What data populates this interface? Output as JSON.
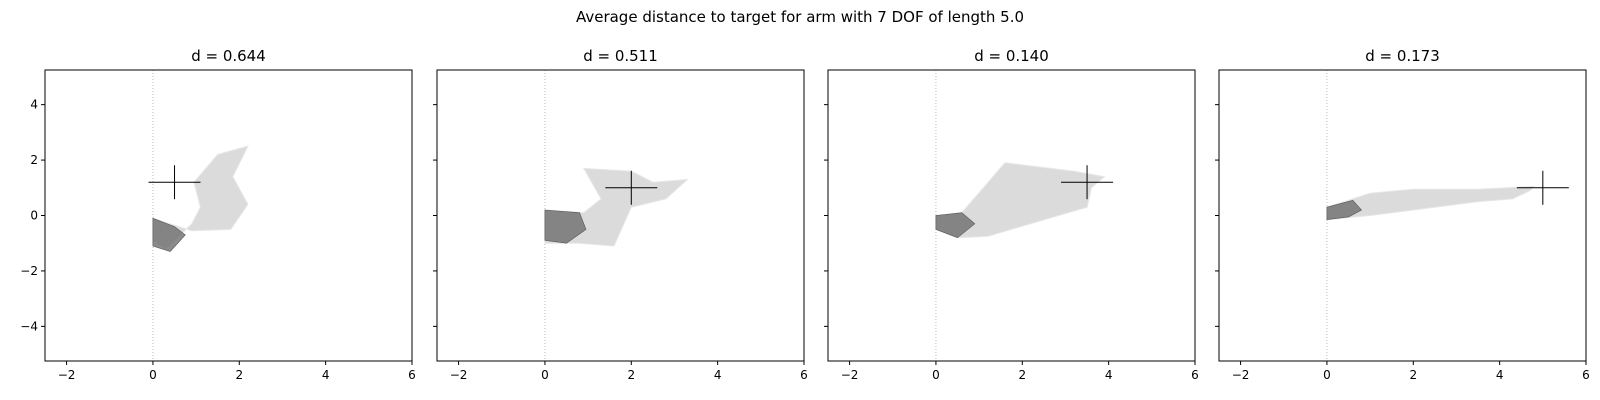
{
  "figure": {
    "title": "Average distance to target for arm with 7 DOF of length 5.0"
  },
  "chart_data": [
    {
      "type": "scatter",
      "title": "d = 0.644",
      "xlim": [
        -2.5,
        6
      ],
      "ylim": [
        -5.25,
        5.25
      ],
      "xticks": [
        -2,
        0,
        2,
        4,
        6
      ],
      "yticks": [
        -4,
        -2,
        0,
        2,
        4
      ],
      "grid": false,
      "target": {
        "x": 0.5,
        "y": 1.2
      },
      "arm_envelope": [
        [
          0,
          -0.1
        ],
        [
          0.9,
          -0.55
        ],
        [
          1.8,
          -0.5
        ],
        [
          2.2,
          0.4
        ],
        [
          1.85,
          1.4
        ],
        [
          2.2,
          2.5
        ],
        [
          1.5,
          2.2
        ],
        [
          0.95,
          1.2
        ],
        [
          1.1,
          0.3
        ],
        [
          0.9,
          -0.3
        ],
        [
          0.3,
          -1.2
        ],
        [
          0,
          -0.9
        ]
      ],
      "dark_region": [
        [
          0,
          -0.1
        ],
        [
          0.5,
          -0.4
        ],
        [
          0.75,
          -0.7
        ],
        [
          0.4,
          -1.3
        ],
        [
          0,
          -1.1
        ]
      ]
    },
    {
      "type": "scatter",
      "title": "d = 0.511",
      "xlim": [
        -2.5,
        6
      ],
      "ylim": [
        -5.25,
        5.25
      ],
      "xticks": [
        -2,
        0,
        2,
        4,
        6
      ],
      "yticks": [
        -4,
        -2,
        0,
        2,
        4
      ],
      "grid": false,
      "target": {
        "x": 2.0,
        "y": 1.0
      },
      "arm_envelope": [
        [
          0,
          0.2
        ],
        [
          0.9,
          0.1
        ],
        [
          1.3,
          0.6
        ],
        [
          0.9,
          1.7
        ],
        [
          2.0,
          1.6
        ],
        [
          2.5,
          1.2
        ],
        [
          3.3,
          1.3
        ],
        [
          2.8,
          0.6
        ],
        [
          2.0,
          0.3
        ],
        [
          1.6,
          -1.1
        ],
        [
          0.8,
          -1.0
        ],
        [
          0,
          -1.0
        ]
      ],
      "dark_region": [
        [
          0,
          0.2
        ],
        [
          0.8,
          0.1
        ],
        [
          0.95,
          -0.5
        ],
        [
          0.5,
          -1.0
        ],
        [
          0,
          -0.9
        ]
      ]
    },
    {
      "type": "scatter",
      "title": "d = 0.140",
      "xlim": [
        -2.5,
        6
      ],
      "ylim": [
        -5.25,
        5.25
      ],
      "xticks": [
        -2,
        0,
        2,
        4,
        6
      ],
      "yticks": [
        -4,
        -2,
        0,
        2,
        4
      ],
      "grid": false,
      "target": {
        "x": 3.5,
        "y": 1.2
      },
      "arm_envelope": [
        [
          0,
          0.0
        ],
        [
          0.6,
          0.1
        ],
        [
          1.6,
          1.9
        ],
        [
          3.2,
          1.6
        ],
        [
          3.9,
          1.4
        ],
        [
          3.6,
          1.0
        ],
        [
          3.5,
          0.3
        ],
        [
          2.4,
          -0.2
        ],
        [
          1.2,
          -0.75
        ],
        [
          0.5,
          -0.8
        ],
        [
          0,
          -0.5
        ]
      ],
      "dark_region": [
        [
          0,
          0.0
        ],
        [
          0.6,
          0.1
        ],
        [
          0.9,
          -0.3
        ],
        [
          0.5,
          -0.8
        ],
        [
          0,
          -0.5
        ]
      ]
    },
    {
      "type": "scatter",
      "title": "d = 0.173",
      "xlim": [
        -2.5,
        6
      ],
      "ylim": [
        -5.25,
        5.25
      ],
      "xticks": [
        -2,
        0,
        2,
        4,
        6
      ],
      "yticks": [
        -4,
        -2,
        0,
        2,
        4
      ],
      "grid": false,
      "target": {
        "x": 5.0,
        "y": 1.0
      },
      "arm_envelope": [
        [
          0,
          0.3
        ],
        [
          1.0,
          0.8
        ],
        [
          2.0,
          0.95
        ],
        [
          3.5,
          0.95
        ],
        [
          4.8,
          1.05
        ],
        [
          4.7,
          0.9
        ],
        [
          4.3,
          0.6
        ],
        [
          3.5,
          0.5
        ],
        [
          2.0,
          0.2
        ],
        [
          1.0,
          0.0
        ],
        [
          0,
          -0.15
        ]
      ],
      "dark_region": [
        [
          0,
          0.3
        ],
        [
          0.6,
          0.55
        ],
        [
          0.8,
          0.2
        ],
        [
          0.5,
          -0.05
        ],
        [
          0,
          -0.15
        ]
      ]
    }
  ]
}
